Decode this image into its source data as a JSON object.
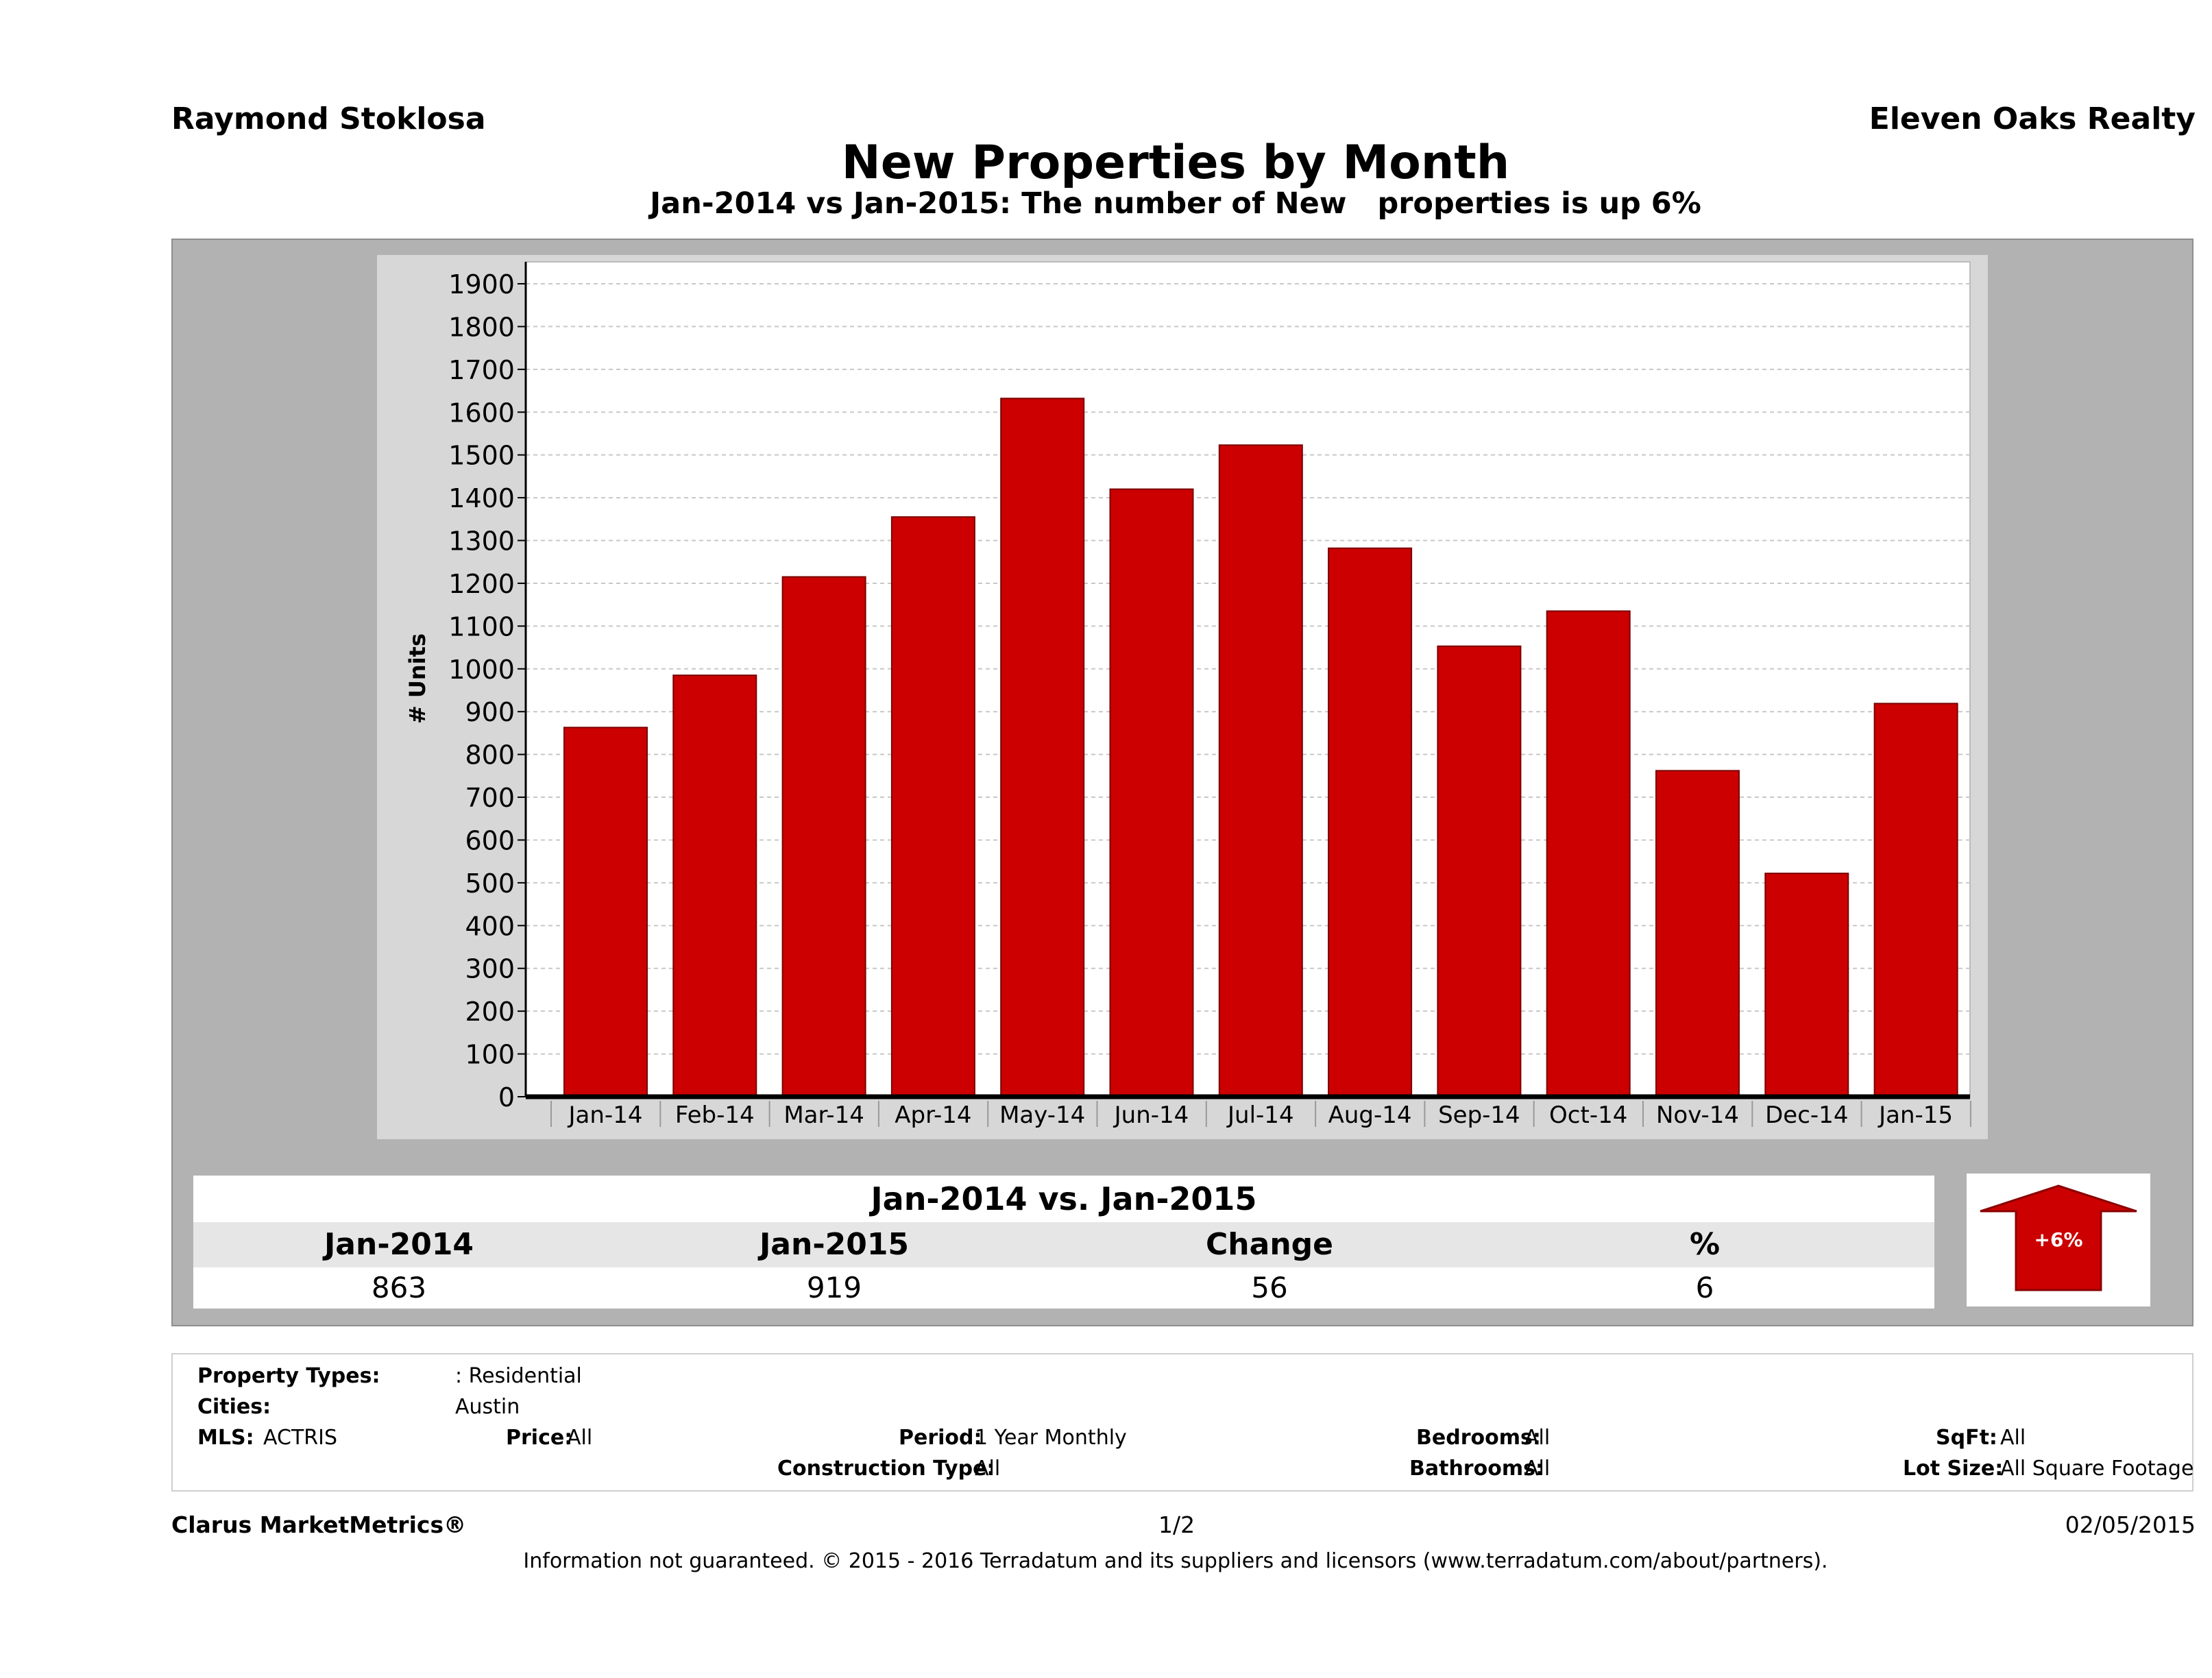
{
  "header": {
    "agent_name": "Raymond Stoklosa",
    "office_name": "Eleven Oaks Realty"
  },
  "chart_data": {
    "type": "bar",
    "title": "New Properties by Month",
    "subtitle": "Jan-2014 vs Jan-2015: The number of New   properties is up 6%",
    "xlabel": "",
    "ylabel": "# Units",
    "categories": [
      "Jan-14",
      "Feb-14",
      "Mar-14",
      "Apr-14",
      "May-14",
      "Jun-14",
      "Jul-14",
      "Aug-14",
      "Sep-14",
      "Oct-14",
      "Nov-14",
      "Dec-14",
      "Jan-15"
    ],
    "values": [
      863,
      985,
      1215,
      1355,
      1632,
      1420,
      1523,
      1282,
      1053,
      1135,
      762,
      522,
      919
    ],
    "ylim": [
      0,
      1900
    ],
    "yticks": [
      0,
      100,
      200,
      300,
      400,
      500,
      600,
      700,
      800,
      900,
      1000,
      1100,
      1200,
      1300,
      1400,
      1500,
      1600,
      1700,
      1800,
      1900
    ],
    "grid": true,
    "bar_color": "#cc0000"
  },
  "summary": {
    "title": "Jan-2014 vs. Jan-2015",
    "headers": [
      "Jan-2014",
      "Jan-2015",
      "Change",
      "%"
    ],
    "values": [
      "863",
      "919",
      "56",
      "6"
    ],
    "badge": "+6%",
    "badge_color": "#cc0000"
  },
  "criteria": {
    "property_types_label": "Property Types:",
    "property_types_value": ": Residential",
    "cities_label": "Cities:",
    "cities_value": "Austin",
    "mls_label": "MLS:",
    "mls_value": "ACTRIS",
    "price_label": "Price:",
    "price_value": "All",
    "period_label": "Period:",
    "period_value": "1 Year Monthly",
    "construction_label": "Construction Type:",
    "construction_value": "All",
    "bedrooms_label": "Bedrooms:",
    "bedrooms_value": "All",
    "bathrooms_label": "Bathrooms:",
    "bathrooms_value": "All",
    "sqft_label": "SqFt:",
    "sqft_value": "All",
    "lotsize_label": "Lot Size:",
    "lotsize_value": "All Square Footage"
  },
  "footer": {
    "brand": "Clarus MarketMetrics®",
    "page": "1/2",
    "date": "02/05/2015",
    "disclaimer": "Information not guaranteed. © 2015 - 2016 Terradatum and its suppliers and licensors (www.terradatum.com/about/partners)."
  }
}
